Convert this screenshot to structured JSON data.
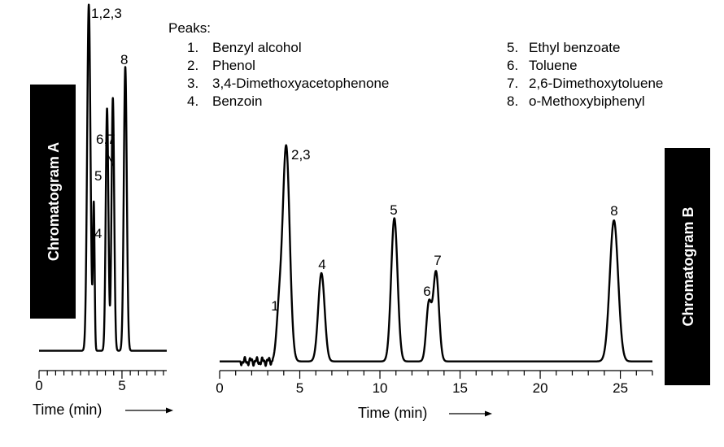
{
  "peaks_title": "Peaks:",
  "peak_list": [
    {
      "num": "1.",
      "name": "Benzyl alcohol"
    },
    {
      "num": "2.",
      "name": "Phenol"
    },
    {
      "num": "3.",
      "name": "3,4-Dimethoxyacetophenone"
    },
    {
      "num": "4.",
      "name": "Benzoin"
    },
    {
      "num": "5.",
      "name": "Ethyl benzoate"
    },
    {
      "num": "6.",
      "name": "Toluene"
    },
    {
      "num": "7.",
      "name": "2,6-Dimethoxytoluene"
    },
    {
      "num": "8.",
      "name": "o-Methoxybiphenyl"
    }
  ],
  "chart_data": [
    {
      "type": "line",
      "title": "Chromatogram A",
      "xlabel": "Time (min)",
      "ylabel": "",
      "xlim": [
        0,
        7.7
      ],
      "ylim": [
        0,
        100
      ],
      "x_ticks": [
        0,
        5
      ],
      "x_minor_step": 0.5,
      "grid": false,
      "baseline": 1.5,
      "peaks": [
        {
          "label": "1,2,3",
          "time": 3.0,
          "height": 100,
          "width": 0.1
        },
        {
          "label": "4",
          "time": 3.3,
          "height": 42,
          "width": 0.05
        },
        {
          "label": "5",
          "time": 4.1,
          "height": 70,
          "width": 0.08
        },
        {
          "label": "6,7",
          "time": 4.45,
          "height": 73,
          "width": 0.08
        },
        {
          "label": "8",
          "time": 5.2,
          "height": 82,
          "width": 0.09
        }
      ]
    },
    {
      "type": "line",
      "title": "Chromatogram B",
      "xlabel": "Time (min)",
      "ylabel": "",
      "xlim": [
        0,
        27
      ],
      "ylim": [
        0,
        100
      ],
      "x_ticks": [
        0,
        5,
        10,
        15,
        20,
        25
      ],
      "x_minor_step": 1,
      "grid": false,
      "baseline": 0.5,
      "peaks": [
        {
          "label": "1",
          "time": 3.7,
          "height": 20.5,
          "width": 0.16
        },
        {
          "label": "2,3",
          "time": 4.15,
          "height": 100,
          "width": 0.22
        },
        {
          "label": "4",
          "time": 6.35,
          "height": 41,
          "width": 0.2
        },
        {
          "label": "5",
          "time": 10.9,
          "height": 66.5,
          "width": 0.2
        },
        {
          "label": "6",
          "time": 13.05,
          "height": 26.5,
          "width": 0.16
        },
        {
          "label": "7",
          "time": 13.5,
          "height": 41.5,
          "width": 0.18
        },
        {
          "label": "8",
          "time": 24.6,
          "height": 65.5,
          "width": 0.26
        }
      ]
    }
  ]
}
